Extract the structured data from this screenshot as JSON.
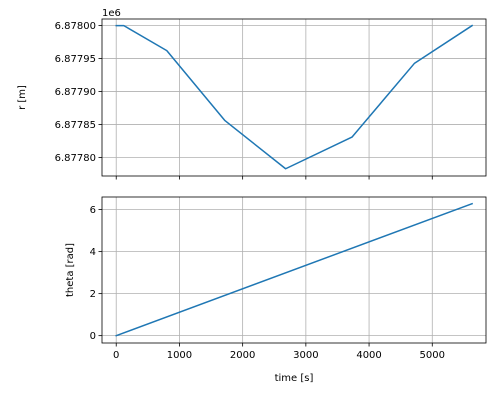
{
  "chart_data": [
    {
      "type": "line",
      "xlabel": "",
      "ylabel": "r [m]",
      "offset_text": "1e6",
      "xlim": [
        -225,
        5850
      ],
      "ylim": [
        6.877772,
        6.87801
      ],
      "xticks": [
        0,
        1000,
        2000,
        3000,
        4000,
        5000
      ],
      "xtick_labels": [
        "",
        "",
        "",
        "",
        "",
        ""
      ],
      "yticks": [
        6.8778,
        6.87785,
        6.8779,
        6.87795,
        6.878
      ],
      "ytick_labels": [
        "6.87780",
        "6.87785",
        "6.87790",
        "6.87795",
        "6.87800"
      ],
      "grid": true,
      "color": "#1f77b4",
      "x": [
        0,
        120,
        800,
        1720,
        2680,
        3730,
        4720,
        5630
      ],
      "y": [
        6.878,
        6.878,
        6.877962,
        6.877856,
        6.877783,
        6.877831,
        6.877943,
        6.878
      ]
    },
    {
      "type": "line",
      "xlabel": "time [s]",
      "ylabel": "theta [rad]",
      "xlim": [
        -225,
        5850
      ],
      "ylim": [
        -0.35,
        6.6
      ],
      "xticks": [
        0,
        1000,
        2000,
        3000,
        4000,
        5000
      ],
      "xtick_labels": [
        "0",
        "1000",
        "2000",
        "3000",
        "4000",
        "5000"
      ],
      "yticks": [
        0,
        2,
        4,
        6
      ],
      "ytick_labels": [
        "0",
        "2",
        "4",
        "6"
      ],
      "grid": true,
      "color": "#1f77b4",
      "x": [
        0,
        5630
      ],
      "y": [
        0,
        6.283
      ]
    }
  ]
}
